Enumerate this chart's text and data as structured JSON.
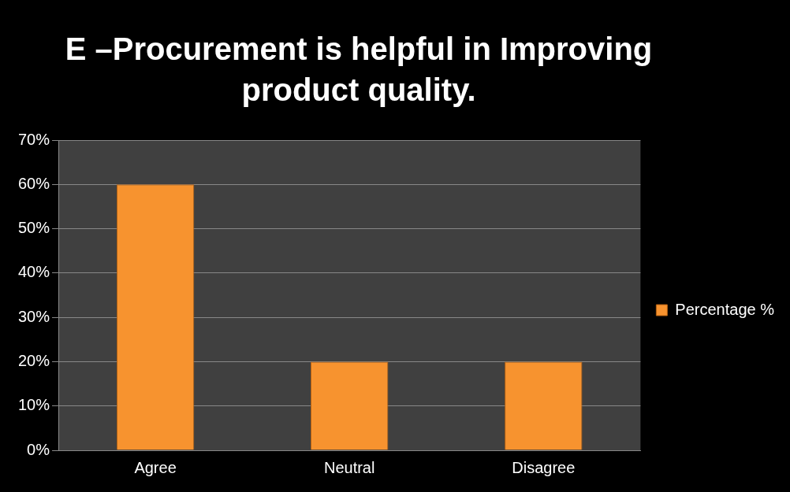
{
  "chart_data": {
    "type": "bar",
    "title": "E –Procurement is helpful in Improving product quality.",
    "categories": [
      "Agree",
      "Neutral",
      "Disagree"
    ],
    "series": [
      {
        "name": "Percentage %",
        "color": "#f7932f",
        "values": [
          60,
          20,
          20
        ]
      }
    ],
    "ylim": [
      0,
      70
    ],
    "yticks": [
      {
        "value": 0,
        "label": "0%"
      },
      {
        "value": 10,
        "label": "10%"
      },
      {
        "value": 20,
        "label": "20%"
      },
      {
        "value": 30,
        "label": "30%"
      },
      {
        "value": 40,
        "label": "40%"
      },
      {
        "value": 50,
        "label": "50%"
      },
      {
        "value": 60,
        "label": "60%"
      },
      {
        "value": 70,
        "label": "70%"
      }
    ],
    "grid": "y",
    "legend": "right"
  }
}
